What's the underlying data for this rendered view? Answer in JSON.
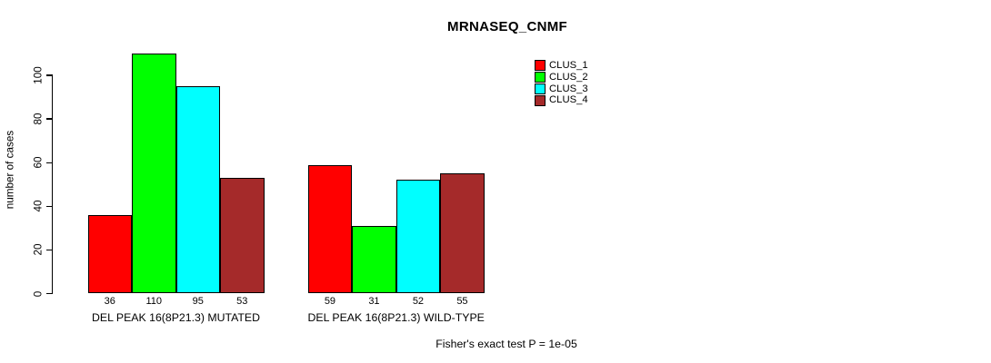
{
  "title": "MRNASEQ_CNMF",
  "ylabel": "number of cases",
  "footer": "Fisher's exact test P = 1e-05",
  "colors": {
    "clus_1": "#ff0000",
    "clus_2": "#00ff00",
    "clus_3": "#00ffff",
    "clus_4": "#a52a2a",
    "axis": "#000000",
    "background": "#ffffff"
  },
  "legend": [
    {
      "label": "CLUS_1",
      "color": "#ff0000"
    },
    {
      "label": "CLUS_2",
      "color": "#00ff00"
    },
    {
      "label": "CLUS_3",
      "color": "#00ffff"
    },
    {
      "label": "CLUS_4",
      "color": "#a52a2a"
    }
  ],
  "chart_data": {
    "type": "bar",
    "title": "MRNASEQ_CNMF",
    "xlabel": "",
    "ylabel": "number of cases",
    "ylim": [
      0,
      110
    ],
    "yticks": [
      0,
      20,
      40,
      60,
      80,
      100
    ],
    "grid": false,
    "legend_position": "top-right",
    "series": [
      "CLUS_1",
      "CLUS_2",
      "CLUS_3",
      "CLUS_4"
    ],
    "series_colors": [
      "#ff0000",
      "#00ff00",
      "#00ffff",
      "#a52a2a"
    ],
    "groups": [
      {
        "label": "DEL PEAK 16(8P21.3) MUTATED",
        "values": [
          36,
          110,
          95,
          53
        ]
      },
      {
        "label": "DEL PEAK 16(8P21.3) WILD-TYPE",
        "values": [
          59,
          31,
          52,
          55
        ]
      }
    ],
    "bar_value_labels_shown": true,
    "annotation": "Fisher's exact test P = 1e-05"
  }
}
